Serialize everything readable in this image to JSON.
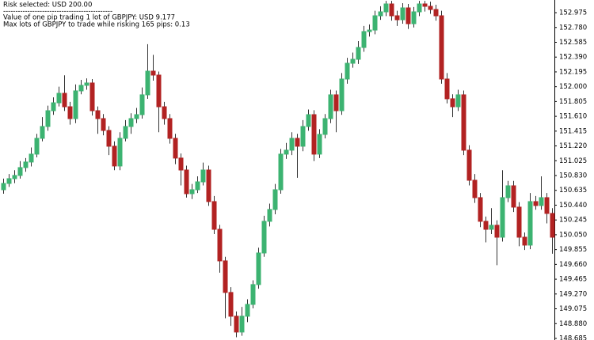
{
  "chart_data": {
    "type": "candlestick",
    "annotations": [
      "Risk selected: USD 200.00",
      "---------------------------------------------",
      "Value of one pip trading 1 lot of GBPJPY: USD 9.177",
      "Max lots of GBPJPY to trade while risking 165 pips: 0.13"
    ],
    "up_color": "#3cb371",
    "down_color": "#b22222",
    "wick_color": "#333333",
    "ylim": [
      148.664,
      153.142
    ],
    "yticks": [
      152.975,
      {
        "value": 152.78,
        "label": "152.780"
      },
      152.585,
      {
        "value": 152.39,
        "label": "152.390"
      },
      152.195,
      {
        "value": 152.0,
        "label": "152.000"
      },
      151.805,
      {
        "value": 151.61,
        "label": "151.610"
      },
      151.415,
      {
        "value": 151.22,
        "label": "151.220"
      },
      151.025,
      {
        "value": 150.83,
        "label": "150.830"
      },
      150.635,
      {
        "value": 150.44,
        "label": "150.440"
      },
      150.245,
      {
        "value": 150.05,
        "label": "150.050"
      },
      149.855,
      {
        "value": 149.66,
        "label": "149.660"
      },
      149.465,
      {
        "value": 149.27,
        "label": "149.270"
      },
      149.075,
      {
        "value": 148.88,
        "label": "148.880"
      },
      148.685
    ],
    "open": [
      150.643,
      150.726,
      150.789,
      150.831,
      150.935,
      151.008,
      151.112,
      151.32,
      151.476,
      151.684,
      151.788,
      151.913,
      151.736,
      151.58,
      151.945,
      152.018,
      152.049,
      151.684,
      151.58,
      151.424,
      151.216,
      150.956,
      151.32,
      151.476,
      151.58,
      151.632,
      151.893,
      152.205,
      152.153,
      151.736,
      151.58,
      151.32,
      151.06,
      150.903,
      150.591,
      150.643,
      150.747,
      150.903,
      150.487,
      150.122,
      149.706,
      149.29,
      148.977,
      148.769,
      148.977,
      149.133,
      149.394,
      149.81,
      150.227,
      150.383,
      150.643,
      151.112,
      151.164,
      151.32,
      151.216,
      151.476,
      151.632,
      151.112,
      151.372,
      151.58,
      151.893,
      151.684,
      152.101,
      152.309,
      152.361,
      152.517,
      152.726,
      152.746,
      152.934,
      152.986,
      153.09,
      152.934,
      152.882,
      153.038,
      152.83,
      152.986,
      153.09,
      153.059,
      153.017,
      152.934,
      152.101,
      151.841,
      151.736,
      151.893,
      151.164,
      150.768,
      150.539,
      150.227,
      150.122,
      150.175,
      150.018,
      150.539,
      150.695,
      150.414,
      150.018,
      149.914,
      150.487,
      150.435,
      150.539,
      150.331
    ],
    "high": [
      150.79,
      150.85,
      150.9,
      151.02,
      151.06,
      151.2,
      151.38,
      151.6,
      151.75,
      151.86,
      152.0,
      152.15,
      151.8,
      152.03,
      152.09,
      152.11,
      152.1,
      151.74,
      151.64,
      151.48,
      151.28,
      151.4,
      151.56,
      151.65,
      151.72,
      151.99,
      152.56,
      152.42,
      152.2,
      151.8,
      151.64,
      151.38,
      151.12,
      150.96,
      150.72,
      150.82,
      151.0,
      150.96,
      150.56,
      150.18,
      149.76,
      149.36,
      149.04,
      149.1,
      149.2,
      149.45,
      149.88,
      150.3,
      150.46,
      150.72,
      151.18,
      151.26,
      151.4,
      151.38,
      151.56,
      151.7,
      151.69,
      151.44,
      151.64,
      151.96,
      151.95,
      152.18,
      152.38,
      152.45,
      152.6,
      152.8,
      152.82,
      153.0,
      153.06,
      153.13,
      153.13,
      153.0,
      153.1,
      153.09,
      153.05,
      153.13,
      153.13,
      153.12,
      153.08,
      153.0,
      152.18,
      151.9,
      151.96,
      151.95,
      151.23,
      150.85,
      150.6,
      150.29,
      150.4,
      150.24,
      150.9,
      150.76,
      150.76,
      150.48,
      150.08,
      150.6,
      150.56,
      150.82,
      150.6,
      150.4
    ],
    "low": [
      150.59,
      150.68,
      150.73,
      150.79,
      150.88,
      150.95,
      151.07,
      151.28,
      151.42,
      151.63,
      151.74,
      151.68,
      151.5,
      151.52,
      151.9,
      151.96,
      151.62,
      151.38,
      151.36,
      151.1,
      150.9,
      150.9,
      151.28,
      151.38,
      151.52,
      151.58,
      151.84,
      152.08,
      151.4,
      151.5,
      151.25,
      150.98,
      150.7,
      150.54,
      150.52,
      150.6,
      150.7,
      150.43,
      150.06,
      149.55,
      148.95,
      148.85,
      148.7,
      148.72,
      148.9,
      149.08,
      149.34,
      149.76,
      150.16,
      150.32,
      150.59,
      151.05,
      151.1,
      150.8,
      151.15,
      151.42,
      151.02,
      151.06,
      151.32,
      151.52,
      151.4,
      151.63,
      152.04,
      152.25,
      152.3,
      152.46,
      152.66,
      152.69,
      152.88,
      152.93,
      152.87,
      152.8,
      152.83,
      152.76,
      152.78,
      152.93,
      152.99,
      152.96,
      152.87,
      152.04,
      151.78,
      151.6,
      151.68,
      151.1,
      150.7,
      150.47,
      150.15,
      149.95,
      150.06,
      149.65,
      149.96,
      150.48,
      150.35,
      149.9,
      149.85,
      149.86,
      150.38,
      150.38,
      150.2,
      149.8
    ],
    "close": [
      150.726,
      150.789,
      150.831,
      150.935,
      151.008,
      151.112,
      151.32,
      151.476,
      151.684,
      151.788,
      151.913,
      151.736,
      151.58,
      151.945,
      152.018,
      152.049,
      151.684,
      151.58,
      151.424,
      151.216,
      150.956,
      151.32,
      151.476,
      151.58,
      151.632,
      151.893,
      152.205,
      152.153,
      151.736,
      151.58,
      151.32,
      151.06,
      150.903,
      150.591,
      150.643,
      150.747,
      150.903,
      150.487,
      150.122,
      149.706,
      149.29,
      148.977,
      148.769,
      148.977,
      149.133,
      149.394,
      149.81,
      150.227,
      150.383,
      150.643,
      151.112,
      151.164,
      151.32,
      151.216,
      151.476,
      151.632,
      151.112,
      151.372,
      151.58,
      151.893,
      151.684,
      152.101,
      152.309,
      152.361,
      152.517,
      152.726,
      152.746,
      152.934,
      152.986,
      153.09,
      152.934,
      152.882,
      153.038,
      152.83,
      152.986,
      153.09,
      153.059,
      153.017,
      152.934,
      152.101,
      151.841,
      151.736,
      151.893,
      151.164,
      150.768,
      150.539,
      150.227,
      150.122,
      150.175,
      150.018,
      150.539,
      150.695,
      150.414,
      150.018,
      149.914,
      150.487,
      150.435,
      150.539,
      150.331,
      150.018
    ]
  }
}
